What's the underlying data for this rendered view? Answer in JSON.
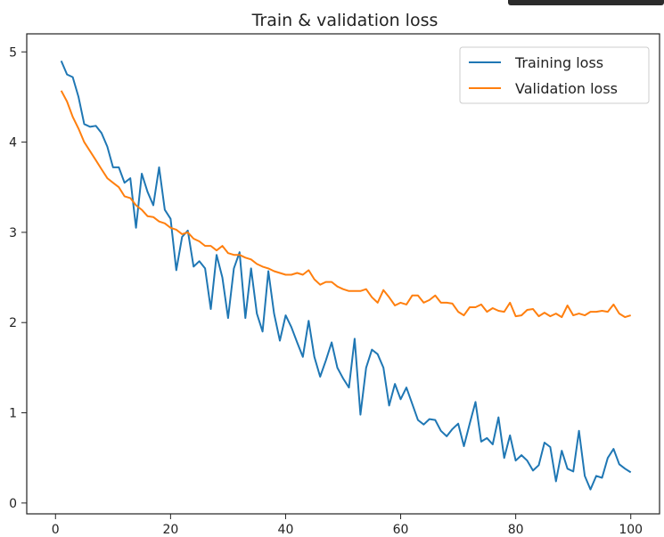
{
  "chart_data": {
    "type": "line",
    "title": "Train & validation loss",
    "xlabel": "",
    "ylabel": "",
    "xlim": [
      -5,
      105
    ],
    "ylim": [
      -0.12,
      5.2
    ],
    "xticks": [
      0,
      20,
      40,
      60,
      80,
      100
    ],
    "yticks": [
      0,
      1,
      2,
      3,
      4,
      5
    ],
    "grid": false,
    "legend_position": "top-right",
    "x": [
      1,
      2,
      3,
      4,
      5,
      6,
      7,
      8,
      9,
      10,
      11,
      12,
      13,
      14,
      15,
      16,
      17,
      18,
      19,
      20,
      21,
      22,
      23,
      24,
      25,
      26,
      27,
      28,
      29,
      30,
      31,
      32,
      33,
      34,
      35,
      36,
      37,
      38,
      39,
      40,
      41,
      42,
      43,
      44,
      45,
      46,
      47,
      48,
      49,
      50,
      51,
      52,
      53,
      54,
      55,
      56,
      57,
      58,
      59,
      60,
      61,
      62,
      63,
      64,
      65,
      66,
      67,
      68,
      69,
      70,
      71,
      72,
      73,
      74,
      75,
      76,
      77,
      78,
      79,
      80,
      81,
      82,
      83,
      84,
      85,
      86,
      87,
      88,
      89,
      90,
      91,
      92,
      93,
      94,
      95,
      96,
      97,
      98,
      99,
      100
    ],
    "series": [
      {
        "name": "Training loss",
        "color": "#1f77b4",
        "values": [
          4.9,
          4.75,
          4.72,
          4.5,
          4.2,
          4.17,
          4.18,
          4.1,
          3.95,
          3.72,
          3.72,
          3.55,
          3.6,
          3.05,
          3.65,
          3.45,
          3.3,
          3.72,
          3.25,
          3.15,
          2.58,
          2.95,
          3.02,
          2.62,
          2.68,
          2.6,
          2.15,
          2.75,
          2.5,
          2.05,
          2.6,
          2.78,
          2.05,
          2.6,
          2.1,
          1.9,
          2.57,
          2.1,
          1.8,
          2.08,
          1.95,
          1.78,
          1.62,
          2.02,
          1.62,
          1.4,
          1.58,
          1.78,
          1.5,
          1.38,
          1.28,
          1.82,
          0.98,
          1.5,
          1.7,
          1.65,
          1.5,
          1.08,
          1.32,
          1.15,
          1.28,
          1.1,
          0.92,
          0.87,
          0.93,
          0.92,
          0.8,
          0.74,
          0.82,
          0.88,
          0.63,
          0.88,
          1.12,
          0.68,
          0.72,
          0.65,
          0.95,
          0.5,
          0.75,
          0.47,
          0.53,
          0.47,
          0.36,
          0.42,
          0.67,
          0.62,
          0.24,
          0.58,
          0.38,
          0.35,
          0.8,
          0.3,
          0.15,
          0.3,
          0.28,
          0.5,
          0.6,
          0.43,
          0.38,
          0.34
        ]
      },
      {
        "name": "Validation loss",
        "color": "#ff7f0e",
        "values": [
          4.57,
          4.45,
          4.28,
          4.15,
          4.0,
          3.9,
          3.8,
          3.7,
          3.6,
          3.55,
          3.5,
          3.4,
          3.38,
          3.3,
          3.25,
          3.18,
          3.17,
          3.12,
          3.1,
          3.05,
          3.03,
          2.98,
          3.0,
          2.93,
          2.9,
          2.85,
          2.85,
          2.8,
          2.85,
          2.77,
          2.75,
          2.75,
          2.72,
          2.7,
          2.65,
          2.62,
          2.6,
          2.57,
          2.55,
          2.53,
          2.53,
          2.55,
          2.53,
          2.58,
          2.48,
          2.42,
          2.45,
          2.45,
          2.4,
          2.37,
          2.35,
          2.35,
          2.35,
          2.37,
          2.28,
          2.22,
          2.36,
          2.28,
          2.19,
          2.22,
          2.2,
          2.3,
          2.3,
          2.22,
          2.25,
          2.3,
          2.22,
          2.22,
          2.21,
          2.12,
          2.08,
          2.17,
          2.17,
          2.2,
          2.12,
          2.16,
          2.13,
          2.12,
          2.22,
          2.07,
          2.08,
          2.14,
          2.15,
          2.07,
          2.11,
          2.07,
          2.1,
          2.06,
          2.19,
          2.08,
          2.1,
          2.08,
          2.12,
          2.12,
          2.13,
          2.12,
          2.2,
          2.1,
          2.06,
          2.08
        ]
      }
    ]
  }
}
